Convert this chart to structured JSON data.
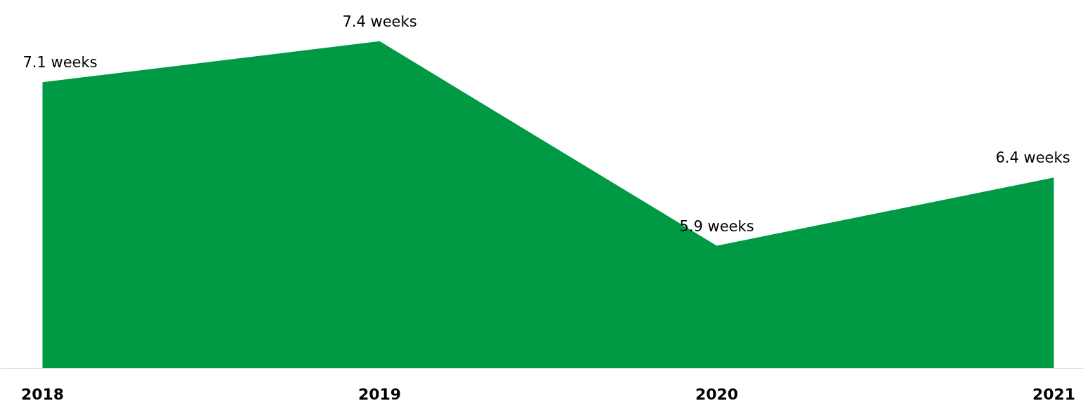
{
  "chart_data": {
    "type": "area",
    "categories": [
      "2018",
      "2019",
      "2020",
      "2021"
    ],
    "series": [
      {
        "color": "#009a44",
        "values": [
          7.1,
          7.4,
          5.9,
          6.4
        ],
        "value_labels": [
          "7.1 weeks",
          "7.4 weeks",
          "5.9 weeks",
          "6.4 weeks"
        ]
      }
    ],
    "tick_labels": "x",
    "grid": false
  }
}
